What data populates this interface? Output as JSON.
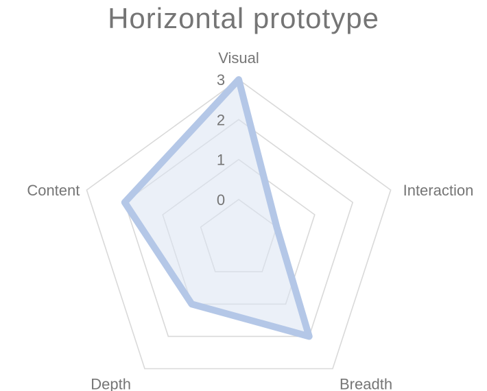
{
  "chart_data": {
    "type": "radar",
    "title": "Horizontal prototype",
    "categories": [
      "Visual",
      "Interaction",
      "Breadth",
      "Depth",
      "Content"
    ],
    "series": [
      {
        "values": [
          3,
          0,
          2,
          1,
          2
        ]
      }
    ],
    "rlim": [
      0,
      3
    ],
    "ticks": [
      "0",
      "1",
      "2",
      "3"
    ],
    "grid": true,
    "legend": "none",
    "colors": {
      "series_stroke": "#b4c7e7",
      "series_fill": "#dae3f3",
      "grid": "#d9d9d9",
      "text": "#757575"
    }
  }
}
